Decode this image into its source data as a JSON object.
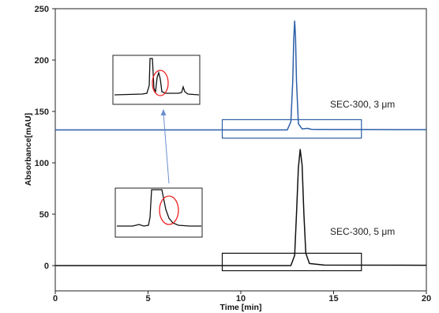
{
  "chart_data": {
    "type": "line",
    "xlabel": "Time [min]",
    "ylabel": "Absorbance[mAU]",
    "xlim": [
      0,
      20
    ],
    "ylim": [
      0,
      250
    ],
    "xticks": [
      0,
      5,
      10,
      15,
      20
    ],
    "yticks": [
      0,
      50,
      100,
      150,
      200,
      250
    ],
    "grid": false,
    "series": [
      {
        "label_text": "SEC-300, 3 μm",
        "color": "#2d5fa8",
        "baseline": 132,
        "x": [
          0,
          12.5,
          12.7,
          12.8,
          12.85,
          12.9,
          12.95,
          13.0,
          13.1,
          13.3,
          13.6,
          13.8,
          14.2,
          17.0,
          20
        ],
        "y": [
          132,
          132,
          140,
          180,
          220,
          238,
          222,
          180,
          138,
          133,
          133.5,
          132.6,
          132.5,
          132.4,
          132.3
        ]
      },
      {
        "label_text": "SEC-300, 5 μm",
        "color": "#111111",
        "baseline": 0,
        "x": [
          0,
          12.7,
          12.9,
          13.0,
          13.1,
          13.2,
          13.3,
          13.4,
          13.5,
          13.7,
          14.5,
          20
        ],
        "y": [
          0,
          0,
          10,
          50,
          95,
          113,
          98,
          50,
          12,
          2,
          0.5,
          0.3
        ]
      }
    ],
    "annotations": [
      {
        "type": "box",
        "color": "#2d5fa8",
        "x": [
          9.0,
          16.5
        ],
        "y": [
          124,
          142
        ]
      },
      {
        "type": "box",
        "color": "#111111",
        "x": [
          9.0,
          16.5
        ],
        "y": [
          -5,
          12
        ]
      }
    ]
  }
}
